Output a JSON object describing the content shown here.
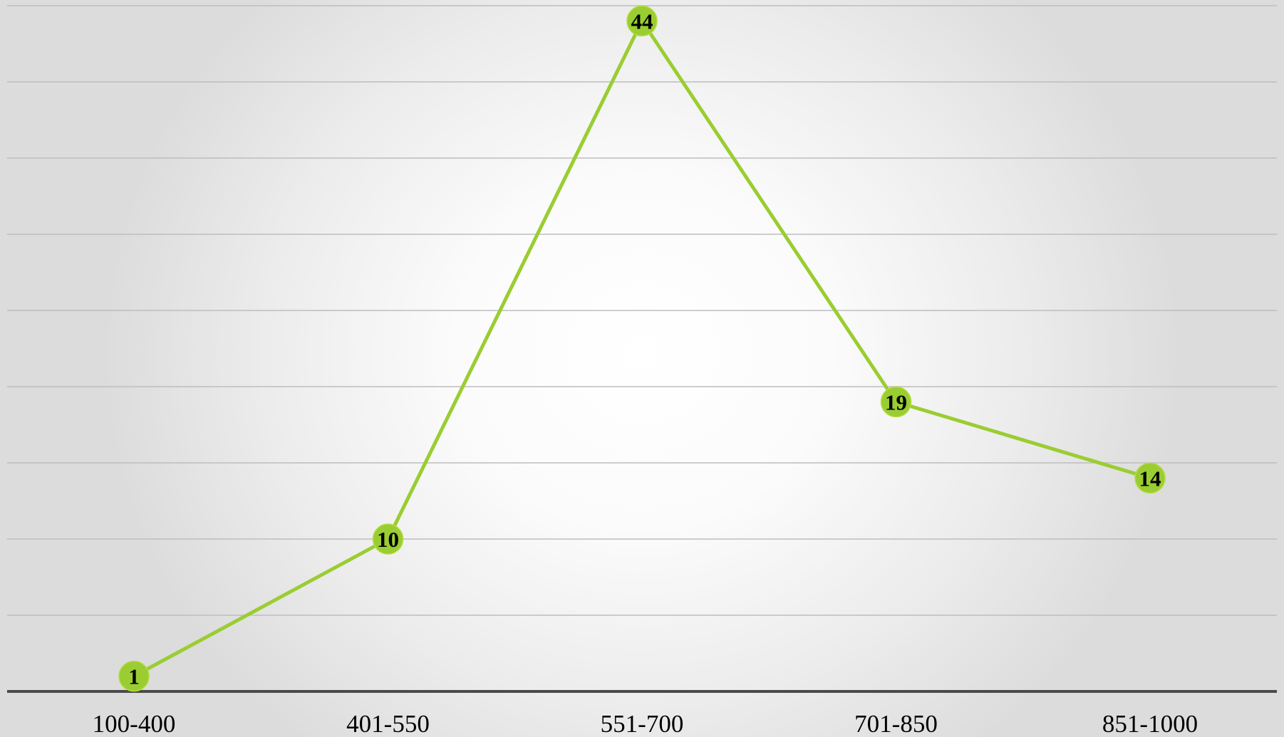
{
  "chart_data": {
    "type": "line",
    "title": "",
    "xlabel": "",
    "ylabel": "",
    "categories": [
      "100-400",
      "401-550",
      "551-700",
      "701-850",
      "851-1000"
    ],
    "series": [
      {
        "values": [
          1,
          10,
          44,
          19,
          14
        ]
      }
    ],
    "ylim": [
      0,
      45
    ],
    "y_gridline_step": 5,
    "grid": true,
    "legend": "none",
    "data_labels": true,
    "colors": {
      "line": "#9ACD32",
      "marker": "#9ACD32",
      "grid": "#BDBDBD",
      "baseline": "#4A4A4A"
    }
  }
}
